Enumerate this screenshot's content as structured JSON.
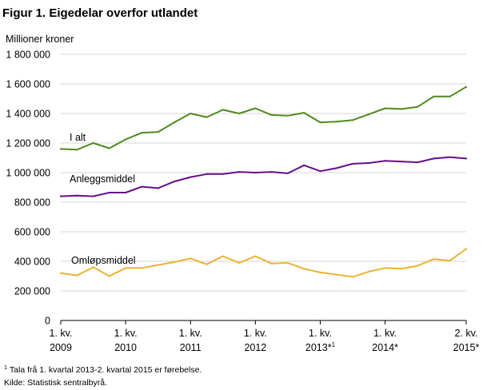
{
  "chart_data": {
    "type": "line",
    "title": "Figur 1. Eigedelar overfor utlandet",
    "unit_label": "Millioner  kroner",
    "ylim": [
      0,
      1800000
    ],
    "y_ticks": [
      {
        "value": 0,
        "label": "0"
      },
      {
        "value": 200000,
        "label": "200 000"
      },
      {
        "value": 400000,
        "label": "400 000"
      },
      {
        "value": 600000,
        "label": "600 000"
      },
      {
        "value": 800000,
        "label": "800 000"
      },
      {
        "value": 1000000,
        "label": "1 000 000"
      },
      {
        "value": 1200000,
        "label": "1 200 000"
      },
      {
        "value": 1400000,
        "label": "1 400 000"
      },
      {
        "value": 1600000,
        "label": "1 600 000"
      },
      {
        "value": 1800000,
        "label": "1 800 000"
      }
    ],
    "grid": true,
    "legend": "none (series labelled inline)",
    "categories": [
      "2009 K1",
      "2009 K2",
      "2009 K3",
      "2009 K4",
      "2010 K1",
      "2010 K2",
      "2010 K3",
      "2010 K4",
      "2011 K1",
      "2011 K2",
      "2011 K3",
      "2011 K4",
      "2012 K1",
      "2012 K2",
      "2012 K3",
      "2012 K4",
      "2013 K1",
      "2013 K2",
      "2013 K3",
      "2013 K4",
      "2014 K1",
      "2014 K2",
      "2014 K3",
      "2014 K4",
      "2015 K1",
      "2015 K2"
    ],
    "x_ticks": [
      {
        "index": 0,
        "line1": "1. kv.",
        "line2": "2009"
      },
      {
        "index": 4,
        "line1": "1. kv.",
        "line2": "2010"
      },
      {
        "index": 8,
        "line1": "1. kv.",
        "line2": "2011"
      },
      {
        "index": 12,
        "line1": "1. kv.",
        "line2": "2012"
      },
      {
        "index": 16,
        "line1": "1. kv.",
        "line2": "2013*",
        "sup": "1"
      },
      {
        "index": 20,
        "line1": "1. kv.",
        "line2": "2014*"
      },
      {
        "index": 25,
        "line1": "2. kv.",
        "line2": "2015*"
      }
    ],
    "series": [
      {
        "name": "I alt",
        "color": "#4e8a1e",
        "values": [
          1160000,
          1155000,
          1200000,
          1165000,
          1225000,
          1270000,
          1275000,
          1340000,
          1400000,
          1375000,
          1425000,
          1400000,
          1435000,
          1390000,
          1385000,
          1405000,
          1340000,
          1345000,
          1355000,
          1395000,
          1435000,
          1430000,
          1445000,
          1515000,
          1515000,
          1580000
        ]
      },
      {
        "name": "Anleggsmiddel",
        "color": "#640e8c",
        "values": [
          840000,
          845000,
          840000,
          865000,
          865000,
          905000,
          895000,
          940000,
          970000,
          990000,
          990000,
          1005000,
          1000000,
          1005000,
          995000,
          1050000,
          1010000,
          1030000,
          1060000,
          1065000,
          1080000,
          1075000,
          1070000,
          1095000,
          1105000,
          1095000
        ]
      },
      {
        "name": "Omløpsmiddel",
        "color": "#ecb232",
        "values": [
          320000,
          305000,
          360000,
          300000,
          355000,
          355000,
          375000,
          395000,
          420000,
          380000,
          435000,
          390000,
          435000,
          385000,
          390000,
          350000,
          325000,
          310000,
          295000,
          330000,
          355000,
          350000,
          370000,
          415000,
          405000,
          485000
        ]
      }
    ]
  },
  "footnote": {
    "marker": "1",
    "text": " Tala frå 1. kvartal 2013-2. kvartal 2015 er førebelse.",
    "source": "Kilde: Statistisk sentralbyrå."
  }
}
